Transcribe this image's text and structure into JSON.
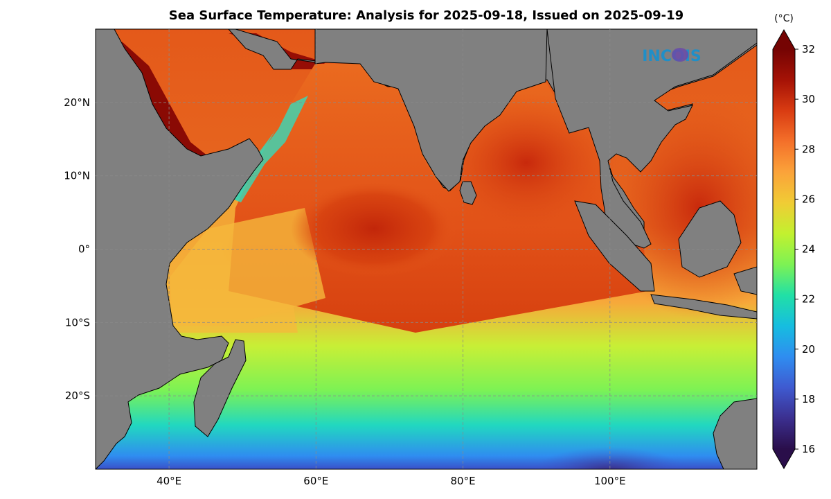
{
  "title": "Sea Surface Temperature: Analysis for 2025-09-18, Issued on 2025-09-19",
  "logo_text": "INCOIS",
  "colorbar": {
    "unit": "(°C)",
    "min": 16,
    "max": 32,
    "ticks": [
      "16",
      "18",
      "20",
      "22",
      "24",
      "26",
      "28",
      "30",
      "32"
    ],
    "colors": [
      "#2a0e4a",
      "#3b2f8f",
      "#3f5ad0",
      "#2f8df0",
      "#16bde0",
      "#21e0a6",
      "#7df254",
      "#c2f12f",
      "#f0cc35",
      "#fba33a",
      "#f4702a",
      "#d93c12",
      "#a51206",
      "#750403"
    ]
  },
  "map": {
    "lon_range": [
      30,
      120
    ],
    "lat_range": [
      -30,
      30
    ],
    "lon_ticks": [
      {
        "value": 40,
        "label": "40°E"
      },
      {
        "value": 60,
        "label": "60°E"
      },
      {
        "value": 80,
        "label": "80°E"
      },
      {
        "value": 100,
        "label": "100°E"
      }
    ],
    "lat_ticks": [
      {
        "value": 20,
        "label": "20°N"
      },
      {
        "value": 10,
        "label": "10°N"
      },
      {
        "value": 0,
        "label": "0°"
      },
      {
        "value": -10,
        "label": "10°S"
      },
      {
        "value": -20,
        "label": "20°S"
      }
    ],
    "land_color": "#808080",
    "gridlines": true
  }
}
